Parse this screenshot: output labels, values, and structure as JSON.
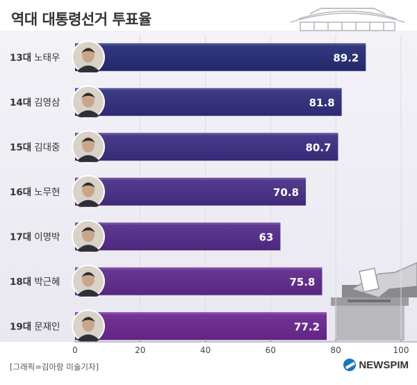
{
  "title": "역대 대통령선거 투표율",
  "credit": "[그래픽=김아랑 미술기자]",
  "brand": "NEWSPIM",
  "chart_data": {
    "type": "bar",
    "orientation": "horizontal",
    "title": "역대 대통령선거 투표율",
    "xlim": [
      0,
      100
    ],
    "xticks": [
      0,
      20,
      40,
      60,
      80,
      100
    ],
    "grid": true,
    "categories": [
      {
        "term": "13대",
        "name": "노태우"
      },
      {
        "term": "14대",
        "name": "김영삼"
      },
      {
        "term": "15대",
        "name": "김대중"
      },
      {
        "term": "16대",
        "name": "노무현"
      },
      {
        "term": "17대",
        "name": "이명박"
      },
      {
        "term": "18대",
        "name": "박근혜"
      },
      {
        "term": "19대",
        "name": "문재인"
      }
    ],
    "values": [
      89.2,
      81.8,
      80.7,
      70.8,
      63,
      75.8,
      77.2
    ],
    "value_labels": [
      "89.2",
      "81.8",
      "80.7",
      "70.8",
      "63",
      "75.8",
      "77.2"
    ],
    "bar_colors": {
      "top": [
        "#343a80",
        "#3e3c86",
        "#4a3c8c",
        "#553c90",
        "#603a93",
        "#6b3895",
        "#773598"
      ],
      "bottom": [
        "#23286a",
        "#2d2a70",
        "#372a76",
        "#412a7a",
        "#4b287e",
        "#562780",
        "#612583"
      ]
    }
  }
}
